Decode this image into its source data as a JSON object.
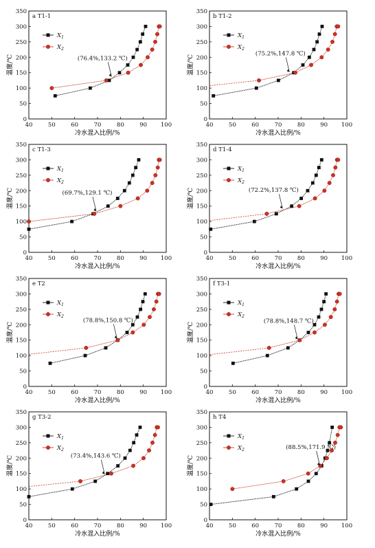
{
  "figure": {
    "panels_meta": {
      "ylabel": "温度/℃",
      "xlabel": "冷水混入比例/%",
      "legend_x1": "X1",
      "legend_x2": "X2",
      "colors": {
        "x1": "#111111",
        "x2": "#cc3322"
      }
    }
  },
  "chart_data": [
    {
      "type": "line",
      "title": "a  T1-1",
      "xlabel": "冷水混入比例/%",
      "ylabel": "温度/℃",
      "xlim": [
        40,
        100
      ],
      "ylim": [
        0,
        350
      ],
      "xticks": [
        40,
        50,
        60,
        70,
        80,
        90,
        100
      ],
      "yticks": [
        0,
        50,
        100,
        150,
        200,
        250,
        300,
        350
      ],
      "legend": "top-left",
      "series": [
        {
          "name": "X1",
          "x": [
            51.5,
            66.8,
            75.1,
            79.6,
            83.2,
            85.6,
            87.3,
            88.7,
            89.7,
            91.0
          ],
          "y": [
            75,
            100,
            125,
            150,
            175,
            200,
            225,
            250,
            275,
            300
          ]
        },
        {
          "name": "X2",
          "x": [
            50.0,
            73.8,
            83.4,
            88.9,
            91.9,
            93.9,
            95.2,
            96.1,
            96.8,
            97.2
          ],
          "y": [
            100,
            125,
            150,
            175,
            200,
            225,
            250,
            275,
            300,
            300
          ]
        }
      ],
      "dashed_from": {
        "x": 50,
        "y": 100
      },
      "annotation": {
        "text": "(76.4%,133.2 ℃)",
        "x": 76.4,
        "y": 133.2
      }
    },
    {
      "type": "line",
      "title": "b  T1-2",
      "xlabel": "冷水混入比例/%",
      "ylabel": "温度/℃",
      "xlim": [
        40,
        100
      ],
      "ylim": [
        0,
        350
      ],
      "xticks": [
        40,
        50,
        60,
        70,
        80,
        90,
        100
      ],
      "yticks": [
        0,
        50,
        100,
        150,
        200,
        250,
        300,
        350
      ],
      "legend": "top-left",
      "series": [
        {
          "name": "X1",
          "x": [
            41.7,
            60.5,
            70.1,
            76.8,
            80.8,
            83.6,
            85.6,
            87.0,
            88.0,
            89.2
          ],
          "y": [
            75,
            100,
            125,
            150,
            175,
            200,
            225,
            250,
            275,
            300
          ]
        },
        {
          "name": "X2",
          "x": [
            61.6,
            77.5,
            84.4,
            89.0,
            91.8,
            93.7,
            94.8,
            95.6,
            96.2
          ],
          "y": [
            125,
            150,
            175,
            200,
            225,
            250,
            275,
            300,
            300
          ]
        }
      ],
      "dashed_from": {
        "x": 40,
        "y": 108
      },
      "annotation": {
        "text": "(75.2%,147.8 ℃)",
        "x": 75.2,
        "y": 147.8
      }
    },
    {
      "type": "line",
      "title": "c  T1-3",
      "xlabel": "冷水混入比例/%",
      "ylabel": "温度/℃",
      "xlim": [
        40,
        100
      ],
      "ylim": [
        0,
        350
      ],
      "xticks": [
        40,
        50,
        60,
        70,
        80,
        90,
        100
      ],
      "yticks": [
        0,
        50,
        100,
        150,
        200,
        250,
        300,
        350
      ],
      "legend": "top-left",
      "series": [
        {
          "name": "X1",
          "x": [
            40.0,
            58.8,
            68.1,
            74.6,
            78.8,
            81.8,
            83.9,
            85.4,
            86.7,
            88.0
          ],
          "y": [
            75,
            100,
            125,
            150,
            175,
            200,
            225,
            250,
            275,
            300
          ]
        },
        {
          "name": "X2",
          "x": [
            40.0,
            68.6,
            80.0,
            87.6,
            91.7,
            93.9,
            95.3,
            96.3,
            96.8,
            97.2
          ],
          "y": [
            100,
            125,
            150,
            175,
            200,
            225,
            250,
            275,
            300,
            300
          ]
        }
      ],
      "dashed_from": {
        "x": 40,
        "y": 100
      },
      "annotation": {
        "text": "(69.7%,129.1 ℃)",
        "x": 69.7,
        "y": 129.1
      }
    },
    {
      "type": "line",
      "title": "d  T1-4",
      "xlabel": "冷水混入比例/%",
      "ylabel": "温度/℃",
      "xlim": [
        40,
        100
      ],
      "ylim": [
        0,
        350
      ],
      "xticks": [
        40,
        50,
        60,
        70,
        80,
        90,
        100
      ],
      "yticks": [
        0,
        50,
        100,
        150,
        200,
        250,
        300,
        350
      ],
      "legend": "top-left",
      "series": [
        {
          "name": "X1",
          "x": [
            40.5,
            59.6,
            69.2,
            75.9,
            80.1,
            82.9,
            85.1,
            86.6,
            87.8,
            89.0
          ],
          "y": [
            75,
            100,
            125,
            150,
            175,
            200,
            225,
            250,
            275,
            300
          ]
        },
        {
          "name": "X2",
          "x": [
            65.0,
            79.2,
            86.1,
            90.2,
            92.4,
            94.0,
            95.0,
            95.7,
            96.2
          ],
          "y": [
            125,
            150,
            175,
            200,
            225,
            250,
            275,
            300,
            300
          ]
        }
      ],
      "dashed_from": {
        "x": 40,
        "y": 103
      },
      "annotation": {
        "text": "(72.2%,137.8 ℃)",
        "x": 72.2,
        "y": 137.8
      }
    },
    {
      "type": "line",
      "title": "e  T2",
      "xlabel": "冷水混入比例/%",
      "ylabel": "温度/℃",
      "xlim": [
        40,
        100
      ],
      "ylim": [
        0,
        350
      ],
      "xticks": [
        40,
        50,
        60,
        70,
        80,
        90,
        100
      ],
      "yticks": [
        0,
        50,
        100,
        150,
        200,
        250,
        300,
        350
      ],
      "legend": "top-left",
      "series": [
        {
          "name": "X1",
          "x": [
            49.3,
            64.6,
            73.6,
            78.8,
            82.9,
            85.4,
            87.4,
            88.8,
            89.8,
            90.8
          ],
          "y": [
            75,
            100,
            125,
            150,
            175,
            200,
            225,
            250,
            275,
            300
          ]
        },
        {
          "name": "X2",
          "x": [
            65.0,
            78.8,
            85.4,
            90.2,
            92.8,
            94.6,
            95.7,
            96.4,
            96.9
          ],
          "y": [
            125,
            150,
            175,
            200,
            225,
            250,
            275,
            300,
            300
          ]
        }
      ],
      "dashed_from": {
        "x": 40,
        "y": 104
      },
      "annotation": {
        "text": "(78.8%,150.8 ℃)",
        "x": 78.8,
        "y": 150.8
      }
    },
    {
      "type": "line",
      "title": "f  T3-1",
      "xlabel": "冷水混入比例/%",
      "ylabel": "温度/℃",
      "xlim": [
        40,
        100
      ],
      "ylim": [
        0,
        350
      ],
      "xticks": [
        40,
        50,
        60,
        70,
        80,
        90,
        100
      ],
      "yticks": [
        0,
        50,
        100,
        150,
        200,
        250,
        300,
        350
      ],
      "legend": "top-left",
      "series": [
        {
          "name": "X1",
          "x": [
            50.3,
            65.3,
            74.3,
            79.4,
            83.2,
            85.9,
            87.7,
            88.9,
            90.0,
            90.9
          ],
          "y": [
            75,
            100,
            125,
            150,
            175,
            200,
            225,
            250,
            275,
            300
          ]
        },
        {
          "name": "X2",
          "x": [
            66.0,
            79.4,
            85.9,
            90.4,
            93.0,
            94.7,
            95.7,
            96.4,
            96.9
          ],
          "y": [
            125,
            150,
            175,
            200,
            225,
            250,
            275,
            300,
            300
          ]
        }
      ],
      "dashed_from": {
        "x": 40,
        "y": 103
      },
      "annotation": {
        "text": "(78.8%,148.7 ℃)",
        "x": 78.8,
        "y": 148.7
      }
    },
    {
      "type": "line",
      "title": "g  T3-2",
      "xlabel": "冷水混入比例/%",
      "ylabel": "温度/℃",
      "xlim": [
        40,
        100
      ],
      "ylim": [
        0,
        350
      ],
      "xticks": [
        40,
        50,
        60,
        70,
        80,
        90,
        100
      ],
      "yticks": [
        0,
        50,
        100,
        150,
        200,
        250,
        300,
        350
      ],
      "legend": "top-left",
      "series": [
        {
          "name": "X1",
          "x": [
            40.0,
            59.0,
            69.0,
            74.4,
            78.9,
            82.0,
            84.2,
            85.8,
            87.1,
            88.6
          ],
          "y": [
            75,
            100,
            125,
            150,
            175,
            200,
            225,
            250,
            275,
            300
          ]
        },
        {
          "name": "X2",
          "x": [
            62.5,
            76.0,
            85.6,
            90.1,
            92.5,
            94.0,
            95.1,
            95.9,
            96.4
          ],
          "y": [
            125,
            150,
            175,
            200,
            225,
            250,
            275,
            300,
            300
          ]
        }
      ],
      "dashed_from": {
        "x": 40,
        "y": 108
      },
      "annotation": {
        "text": "(73.4%,143.6 ℃)",
        "x": 73.4,
        "y": 143.6
      }
    },
    {
      "type": "line",
      "title": "h  T4",
      "xlabel": "冷水混入比例/%",
      "ylabel": "温度/℃",
      "xlim": [
        40,
        100
      ],
      "ylim": [
        0,
        350
      ],
      "xticks": [
        40,
        50,
        60,
        70,
        80,
        90,
        100
      ],
      "yticks": [
        0,
        50,
        100,
        150,
        200,
        250,
        300,
        350
      ],
      "legend": "top-left",
      "series": [
        {
          "name": "X1",
          "x": [
            40.6,
            68.0,
            78.0,
            83.2,
            86.6,
            89.0,
            90.5,
            91.6,
            92.4,
            93.6
          ],
          "y": [
            50,
            75,
            100,
            125,
            150,
            175,
            200,
            225,
            250,
            300
          ]
        },
        {
          "name": "X2",
          "x": [
            50.0,
            72.3,
            83.1,
            88.4,
            91.3,
            93.4,
            94.9,
            96.0,
            96.8,
            97.4
          ],
          "y": [
            100,
            125,
            150,
            175,
            200,
            225,
            250,
            275,
            300,
            300
          ]
        }
      ],
      "dashed_from": {
        "x": 50,
        "y": 100
      },
      "annotation": {
        "text": "(88.5%,171.9 ℃)",
        "x": 88.5,
        "y": 171.9
      }
    }
  ]
}
